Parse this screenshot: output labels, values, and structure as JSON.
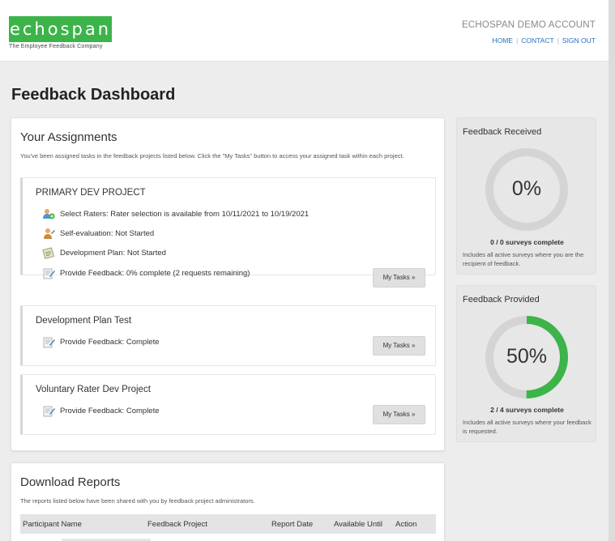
{
  "header": {
    "logo_text": "echospan",
    "tagline": "The Employee Feedback Company",
    "account": "ECHOSPAN DEMO ACCOUNT",
    "nav": [
      "HOME",
      "CONTACT",
      "SIGN OUT"
    ]
  },
  "page_title": "Feedback Dashboard",
  "assignments": {
    "title": "Your Assignments",
    "intro": "You've been assigned tasks in the feedback projects listed below. Click the \"My Tasks\" button to access your assigned task within each project.",
    "projects": [
      {
        "title": "PRIMARY DEV PROJECT",
        "tasks": [
          {
            "icon": "select-raters-icon",
            "text": "Select Raters: Rater selection is available from 10/11/2021 to 10/19/2021"
          },
          {
            "icon": "self-evaluation-icon",
            "text": "Self-evaluation: Not Started"
          },
          {
            "icon": "development-plan-icon",
            "text": "Development Plan: Not Started"
          },
          {
            "icon": "provide-feedback-icon",
            "text": "Provide Feedback: 0% complete (2 requests remaining)"
          }
        ],
        "button": "My Tasks »"
      },
      {
        "title": "Development Plan Test",
        "tasks": [
          {
            "icon": "provide-feedback-icon",
            "text": "Provide Feedback: Complete"
          }
        ],
        "button": "My Tasks »"
      },
      {
        "title": "Voluntary Rater Dev Project",
        "tasks": [
          {
            "icon": "provide-feedback-icon",
            "text": "Provide Feedback: Complete"
          }
        ],
        "button": "My Tasks »"
      }
    ]
  },
  "feedback_received": {
    "title": "Feedback Received",
    "percent_label": "0%",
    "fraction": 0,
    "count": "0 / 0 surveys complete",
    "note": "Includes all active surveys where you are the recipient of feedback."
  },
  "feedback_provided": {
    "title": "Feedback Provided",
    "percent_label": "50%",
    "fraction": 0.5,
    "count": "2 / 4 surveys complete",
    "note": "Includes all active surveys where your feedback is requested."
  },
  "reports": {
    "title": "Download Reports",
    "intro": "The reports listed below have been shared with you by feedback project administrators.",
    "columns": [
      "Participant Name",
      "Feedback Project",
      "Report Date",
      "Available Until",
      "Action"
    ]
  },
  "colors": {
    "brand": "#3cb44a",
    "ring_track": "#d4d4d4",
    "ring_fill": "#3cb44a",
    "link": "#2a6fb5"
  }
}
